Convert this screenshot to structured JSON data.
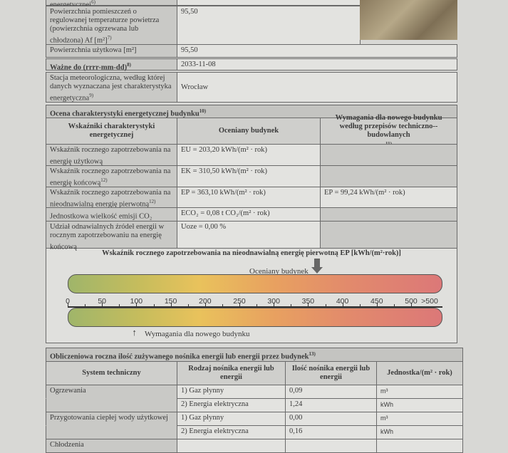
{
  "top": {
    "row0_label": "energetycznej",
    "row0_sup": "6)",
    "area_label": "Powierzchnia pomieszczeń o regulowanej temperaturze powietrza (powierzchnia ogrzewana lub chłodzona) Af [m²]",
    "area_sup": "7)",
    "area_value": "95,50",
    "usable_label": "Powierzchnia użytkowa [m²]",
    "usable_value": "95,50",
    "valid_label": "Ważne do (rrrr-mm-dd)",
    "valid_sup": "8)",
    "valid_value": "2033-11-08",
    "station_label": "Stacja meteorologiczna, według której danych wyznaczana jest charakterystyka energetyczna",
    "station_sup": "9)",
    "station_value": "Wrocław"
  },
  "assessment": {
    "title": "Ocena charakterystyki energetycznej budynku",
    "title_sup": "10)",
    "headers": [
      "Wskaźniki charakterystyki energetycznej",
      "Oceniany budynek",
      "Wymagania dla nowego budynku według przepisów techniczno--budowlanych"
    ],
    "header3_sup": "11)",
    "rows": [
      {
        "label": "Wskaźnik rocznego zapotrzebowania na energię użytkową",
        "sup": "",
        "value": "EU = 203,20 kWh/(m² · rok)",
        "req": ""
      },
      {
        "label": "Wskaźnik rocznego zapotrzebowania na energię końcową",
        "sup": "12)",
        "value": "EK = 310,50 kWh/(m² · rok)",
        "req": ""
      },
      {
        "label": "Wskaźnik rocznego zapotrzebowania na nieodnawialną energię pierwotną",
        "sup": "12)",
        "value": "EP = 363,10 kWh/(m² · rok)",
        "req": "EP = 99,24 kWh/(m² · rok)"
      },
      {
        "label": "Jednostkowa wielkość emisji CO₂",
        "sup": "",
        "value": "ECO₂ = 0,08 t CO₂/(m² · rok)",
        "req": ""
      },
      {
        "label": "Udział odnawialnych źródeł energii w rocznym zapotrzebowaniu na energię końcową",
        "sup": "",
        "value": "Uoze = 0,00 %",
        "req": ""
      }
    ]
  },
  "gauge": {
    "title": "Wskaźnik rocznego zapotrzebowania na nieodnawialną energię pierwotną EP [kWh/(m²·rok)]",
    "ticks": [
      "0",
      "50",
      "100",
      "150",
      "200",
      "250",
      "300",
      "350",
      "400",
      "450",
      "500",
      ">500"
    ],
    "assessed_label": "Oceniany budynek",
    "assessed_value": 363.1,
    "required_label": "Wymagania dla nowego budynku",
    "required_value": 99.24,
    "max": 500
  },
  "carriers": {
    "title": "Obliczeniowa roczna ilość zużywanego nośnika energii lub energii przez budynek",
    "title_sup": "13)",
    "headers": [
      "System techniczny",
      "Rodzaj nośnika energii lub energii",
      "Ilość nośnika energii lub energii",
      "Jednostka/(m² · rok)"
    ],
    "rows": [
      {
        "system": "Ogrzewania",
        "carrier": "1) Gaz płynny",
        "amount": "0,09",
        "unit": "m³"
      },
      {
        "system": "",
        "carrier": "2) Energia elektryczna",
        "amount": "1,24",
        "unit": "kWh"
      },
      {
        "system": "Przygotowania ciepłej wody użytkowej",
        "carrier": "1) Gaz płynny",
        "amount": "0,00",
        "unit": "m³"
      },
      {
        "system": "",
        "carrier": "2) Energia elektryczna",
        "amount": "0,16",
        "unit": "kWh"
      },
      {
        "system": "Chłodzenia",
        "carrier": "",
        "amount": "",
        "unit": ""
      }
    ]
  }
}
